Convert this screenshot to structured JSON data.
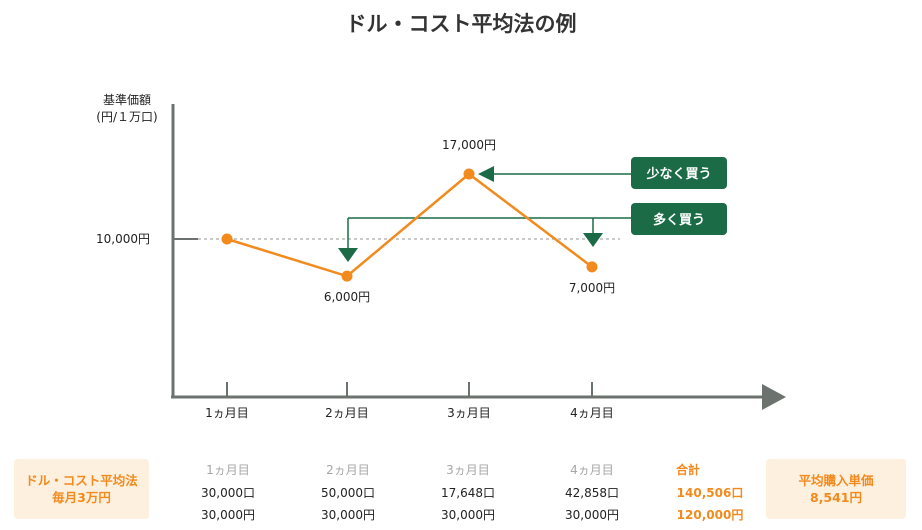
{
  "title": "ドル・コスト平均法の例",
  "chart_data": {
    "type": "line",
    "ylabel": [
      "基準価額",
      "(円/１万口)"
    ],
    "categories": [
      "1ヵ月目",
      "2ヵ月目",
      "3ヵ月目",
      "4ヵ月目"
    ],
    "series": [
      {
        "values": [
          10000,
          6000,
          17000,
          7000
        ]
      }
    ],
    "data_labels": [
      "",
      "6,000円",
      "17,000円",
      "7,000円"
    ],
    "reference": {
      "value": 10000,
      "label": "10,000円"
    },
    "colors": {
      "line": "#f28a1e",
      "axis": "#6c736f",
      "accent": "#1b6b47"
    },
    "callouts": {
      "buy_less": "少なく買う",
      "buy_more": "多く買う"
    }
  },
  "summary": {
    "left_box": [
      "ドル・コスト平均法",
      "毎月3万円"
    ],
    "months": [
      {
        "label": "1ヵ月目",
        "units": "30,000口",
        "amount": "30,000円"
      },
      {
        "label": "2ヵ月目",
        "units": "50,000口",
        "amount": "30,000円"
      },
      {
        "label": "3ヵ月目",
        "units": "17,648口",
        "amount": "30,000円"
      },
      {
        "label": "4ヵ月目",
        "units": "42,858口",
        "amount": "30,000円"
      }
    ],
    "total": {
      "label": "合計",
      "units": "140,506口",
      "amount": "120,000円"
    },
    "right_box": [
      "平均購入単価",
      "8,541円"
    ]
  }
}
